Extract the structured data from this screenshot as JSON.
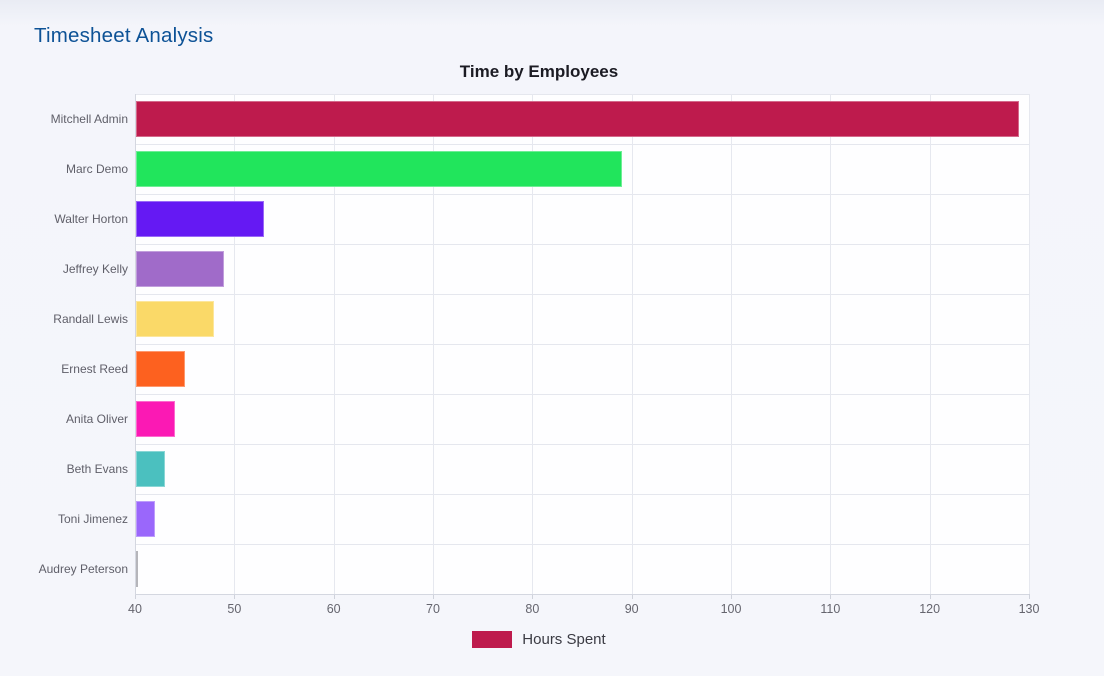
{
  "page": {
    "title": "Timesheet Analysis"
  },
  "chart_data": {
    "type": "bar",
    "orientation": "horizontal",
    "title": "Time by Employees",
    "categories": [
      "Mitchell Admin",
      "Marc Demo",
      "Walter Horton",
      "Jeffrey Kelly",
      "Randall Lewis",
      "Ernest Reed",
      "Anita Oliver",
      "Beth Evans",
      "Toni Jimenez",
      "Audrey Peterson"
    ],
    "series": [
      {
        "name": "Hours Spent",
        "color": "#be1b4d",
        "values": [
          129,
          89,
          53,
          49,
          48,
          45,
          44,
          43,
          42,
          40.2
        ]
      }
    ],
    "bar_colors": [
      "#be1b4d",
      "#21e55c",
      "#6519f3",
      "#a06bc9",
      "#fad968",
      "#fd611f",
      "#fb19b4",
      "#4bc0bf",
      "#9a67fb",
      "#8e8e96"
    ],
    "xlabel": "",
    "ylabel": "",
    "xlim": [
      40,
      130
    ],
    "x_ticks": [
      40,
      50,
      60,
      70,
      80,
      90,
      100,
      110,
      120,
      130
    ],
    "grid": true,
    "legend_position": "bottom",
    "plot_background": "#fefeff",
    "page_background": "#f5f6fb"
  }
}
